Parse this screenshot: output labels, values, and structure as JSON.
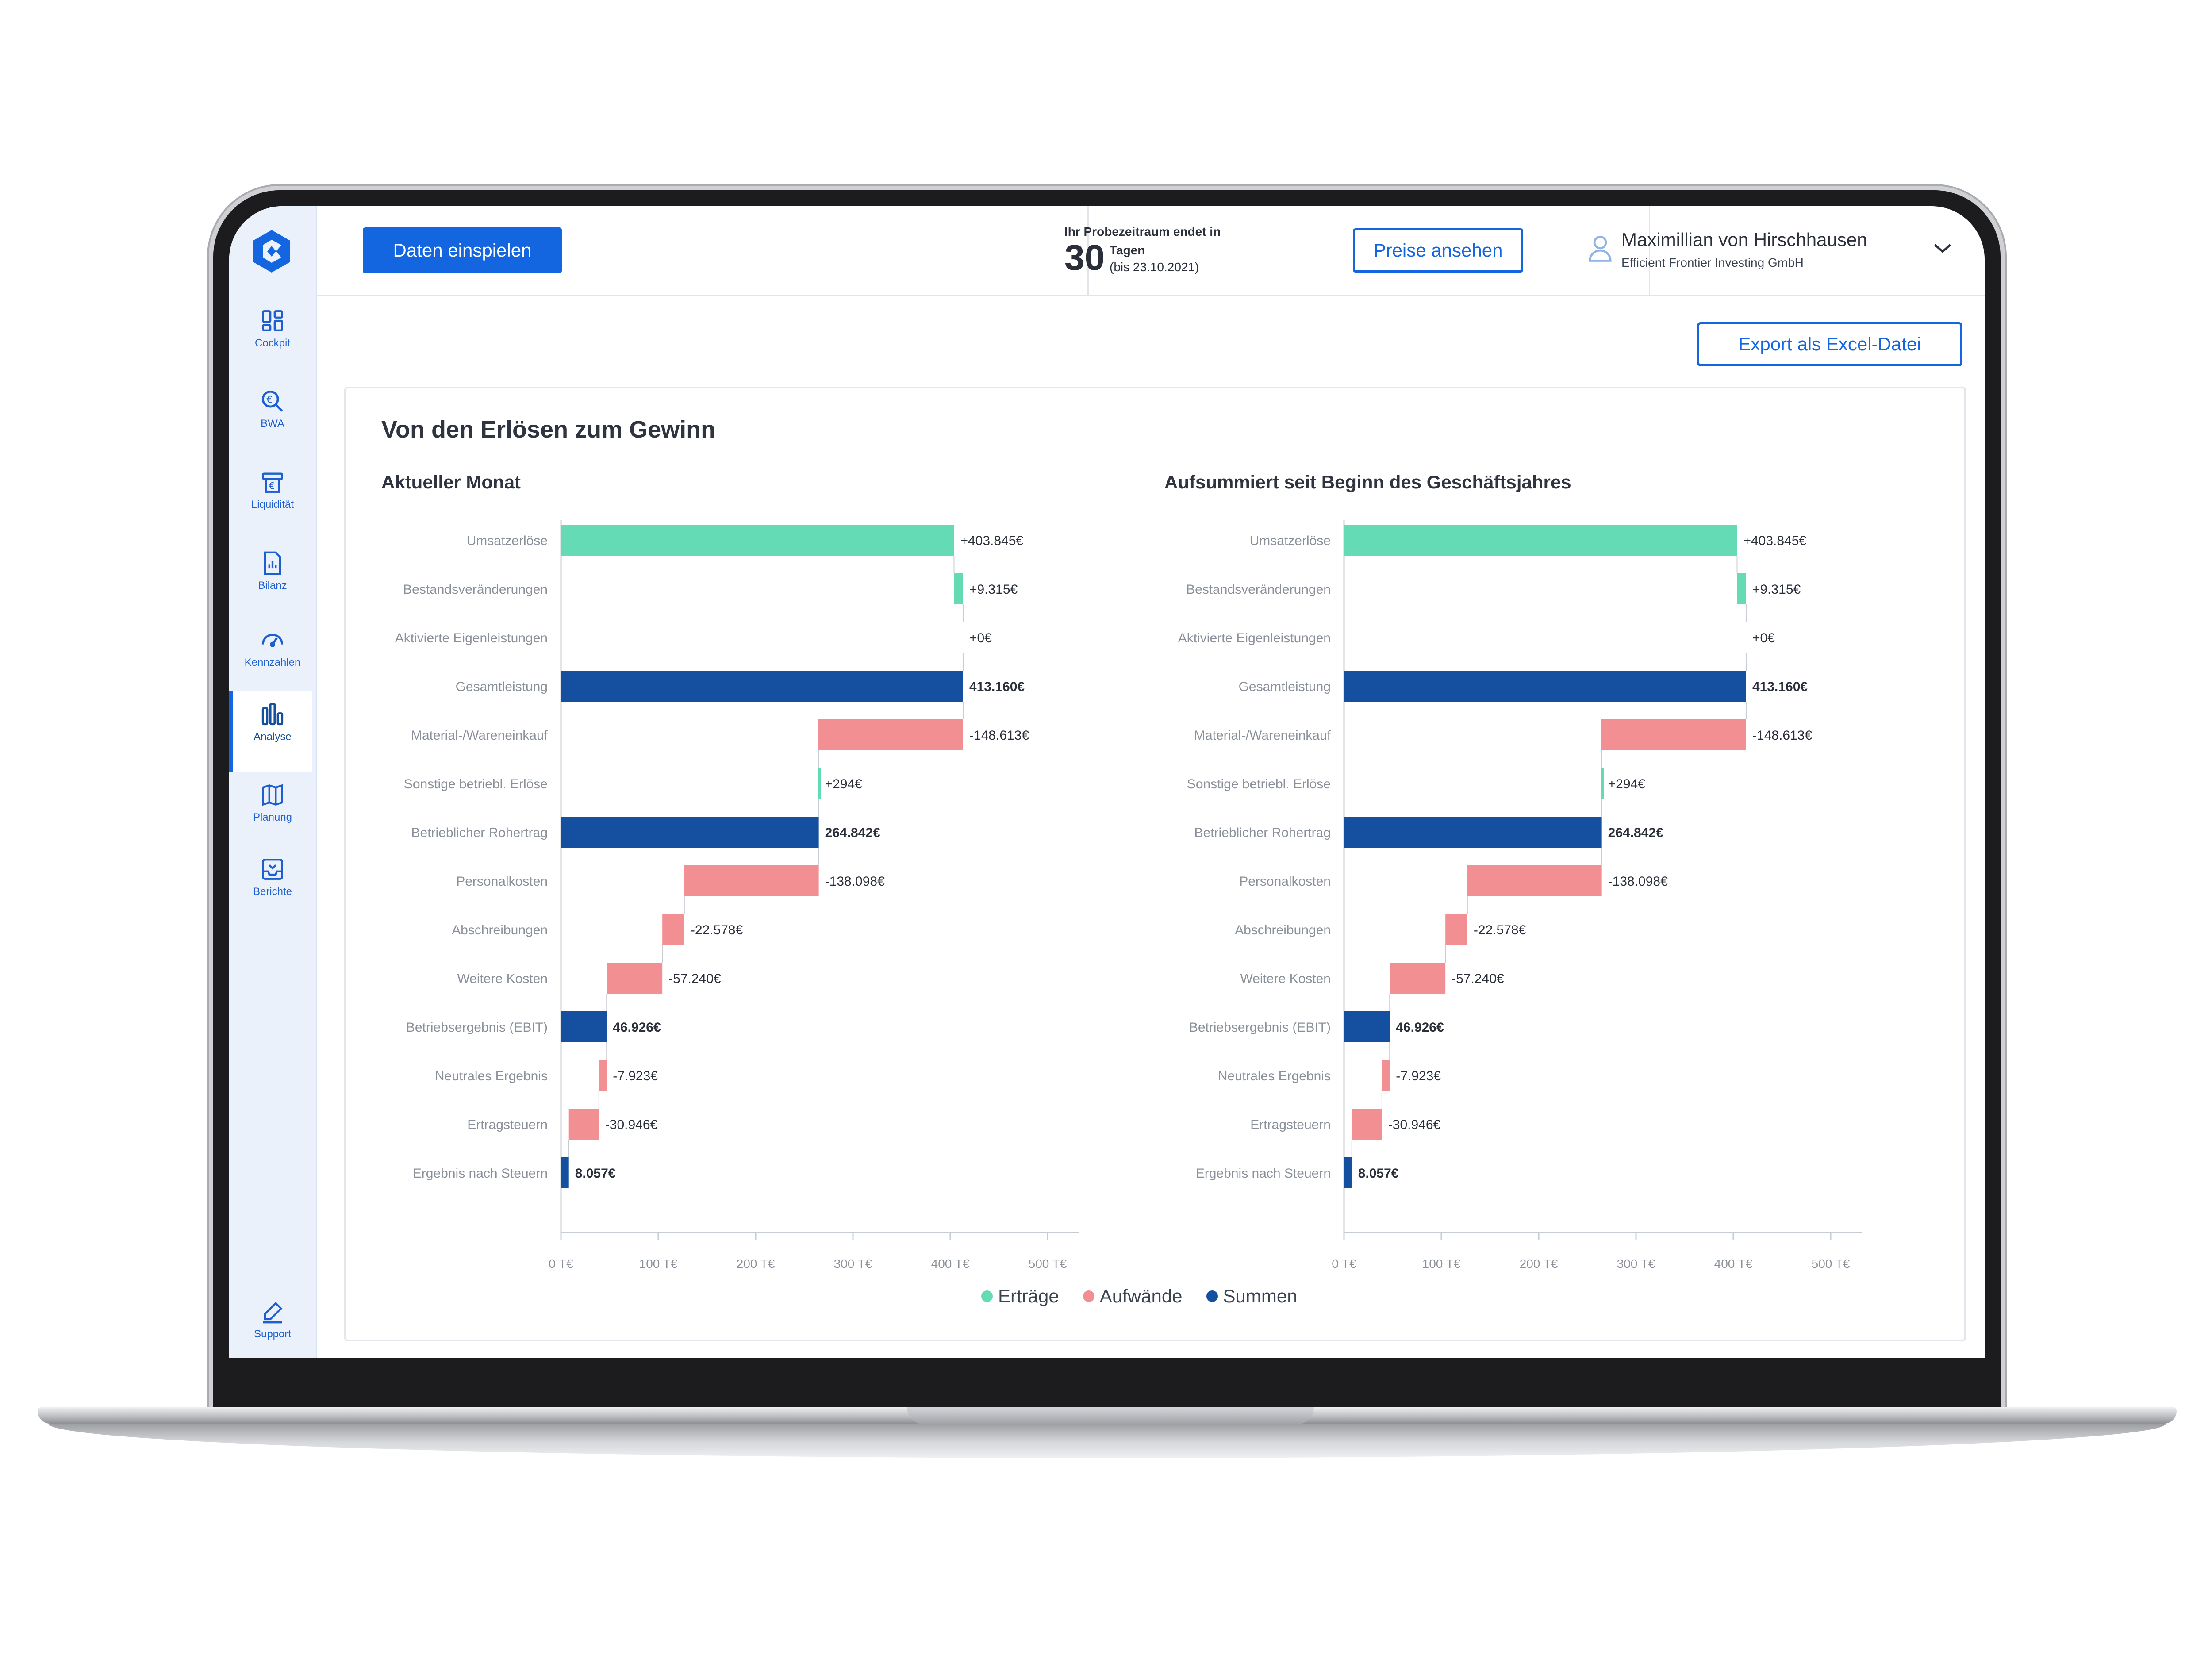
{
  "app": {
    "nav": [
      {
        "label": "Cockpit",
        "icon": "dashboard-icon"
      },
      {
        "label": "BWA",
        "icon": "search-euro-icon"
      },
      {
        "label": "Liquidität",
        "icon": "wallet-icon"
      },
      {
        "label": "Bilanz",
        "icon": "document-chart-icon"
      },
      {
        "label": "Kennzahlen",
        "icon": "gauge-icon"
      },
      {
        "label": "Analyse",
        "icon": "bar-chart-icon",
        "active": true
      },
      {
        "label": "Planung",
        "icon": "map-book-icon"
      },
      {
        "label": "Berichte",
        "icon": "inbox-icon"
      }
    ],
    "support_label": "Support"
  },
  "header": {
    "import_button": "Daten einspielen",
    "trial_line1": "Ihr Probezeitraum endet in",
    "trial_days": "30",
    "trial_unit": "Tagen",
    "trial_date": "(bis 23.10.2021)",
    "prices_button": "Preise ansehen",
    "user_name": "Maximillian von Hirschhausen",
    "user_company": "Efficient Frontier Investing GmbH"
  },
  "content": {
    "export_button": "Export als Excel-Datei",
    "card_title": "Von den Erlösen zum Gewinn",
    "legend": [
      {
        "label": "Erträge",
        "color": "#64dbb5"
      },
      {
        "label": "Aufwände",
        "color": "#f28f93"
      },
      {
        "label": "Summen",
        "color": "#14509f"
      }
    ]
  },
  "colors": {
    "ertrag": "#64dbb5",
    "aufwand": "#f28f93",
    "summe": "#14509f",
    "accent": "#1466e0"
  },
  "chart_data": [
    {
      "type": "bar",
      "subtype": "waterfall-horizontal",
      "title": "Aktueller Monat",
      "xlim": [
        0,
        500000
      ],
      "xticks": [
        "0 T€",
        "100 T€",
        "200 T€",
        "300 T€",
        "400 T€",
        "500 T€"
      ],
      "rows": [
        {
          "label": "Umsatzerlöse",
          "kind": "ertrag",
          "delta": 403845,
          "text": "+403.845€"
        },
        {
          "label": "Bestandsveränderungen",
          "kind": "ertrag",
          "delta": 9315,
          "text": "+9.315€"
        },
        {
          "label": "Aktivierte Eigenleistungen",
          "kind": "ertrag",
          "delta": 0,
          "text": "+0€"
        },
        {
          "label": "Gesamtleistung",
          "kind": "summe",
          "total": 413160,
          "text": "413.160€"
        },
        {
          "label": "Material-/Wareneinkauf",
          "kind": "aufwand",
          "delta": -148613,
          "text": "-148.613€"
        },
        {
          "label": "Sonstige betriebl. Erlöse",
          "kind": "ertrag",
          "delta": 294,
          "text": "+294€"
        },
        {
          "label": "Betrieblicher Rohertrag",
          "kind": "summe",
          "total": 264842,
          "text": "264.842€"
        },
        {
          "label": "Personalkosten",
          "kind": "aufwand",
          "delta": -138098,
          "text": "-138.098€"
        },
        {
          "label": "Abschreibungen",
          "kind": "aufwand",
          "delta": -22578,
          "text": "-22.578€"
        },
        {
          "label": "Weitere Kosten",
          "kind": "aufwand",
          "delta": -57240,
          "text": "-57.240€"
        },
        {
          "label": "Betriebsergebnis (EBIT)",
          "kind": "summe",
          "total": 46926,
          "text": "46.926€"
        },
        {
          "label": "Neutrales Ergebnis",
          "kind": "aufwand",
          "delta": -7923,
          "text": "-7.923€"
        },
        {
          "label": "Ertragsteuern",
          "kind": "aufwand",
          "delta": -30946,
          "text": "-30.946€"
        },
        {
          "label": "Ergebnis nach Steuern",
          "kind": "summe",
          "total": 8057,
          "text": "8.057€"
        }
      ]
    },
    {
      "type": "bar",
      "subtype": "waterfall-horizontal",
      "title": "Aufsummiert seit Beginn des Geschäftsjahres",
      "xlim": [
        0,
        500000
      ],
      "xticks": [
        "0 T€",
        "100 T€",
        "200 T€",
        "300 T€",
        "400 T€",
        "500 T€"
      ],
      "rows": [
        {
          "label": "Umsatzerlöse",
          "kind": "ertrag",
          "delta": 403845,
          "text": "+403.845€"
        },
        {
          "label": "Bestandsveränderungen",
          "kind": "ertrag",
          "delta": 9315,
          "text": "+9.315€"
        },
        {
          "label": "Aktivierte Eigenleistungen",
          "kind": "ertrag",
          "delta": 0,
          "text": "+0€"
        },
        {
          "label": "Gesamtleistung",
          "kind": "summe",
          "total": 413160,
          "text": "413.160€"
        },
        {
          "label": "Material-/Wareneinkauf",
          "kind": "aufwand",
          "delta": -148613,
          "text": "-148.613€"
        },
        {
          "label": "Sonstige betriebl. Erlöse",
          "kind": "ertrag",
          "delta": 294,
          "text": "+294€"
        },
        {
          "label": "Betrieblicher Rohertrag",
          "kind": "summe",
          "total": 264842,
          "text": "264.842€"
        },
        {
          "label": "Personalkosten",
          "kind": "aufwand",
          "delta": -138098,
          "text": "-138.098€"
        },
        {
          "label": "Abschreibungen",
          "kind": "aufwand",
          "delta": -22578,
          "text": "-22.578€"
        },
        {
          "label": "Weitere Kosten",
          "kind": "aufwand",
          "delta": -57240,
          "text": "-57.240€"
        },
        {
          "label": "Betriebsergebnis (EBIT)",
          "kind": "summe",
          "total": 46926,
          "text": "46.926€"
        },
        {
          "label": "Neutrales Ergebnis",
          "kind": "aufwand",
          "delta": -7923,
          "text": "-7.923€"
        },
        {
          "label": "Ertragsteuern",
          "kind": "aufwand",
          "delta": -30946,
          "text": "-30.946€"
        },
        {
          "label": "Ergebnis nach Steuern",
          "kind": "summe",
          "total": 8057,
          "text": "8.057€"
        }
      ]
    }
  ]
}
